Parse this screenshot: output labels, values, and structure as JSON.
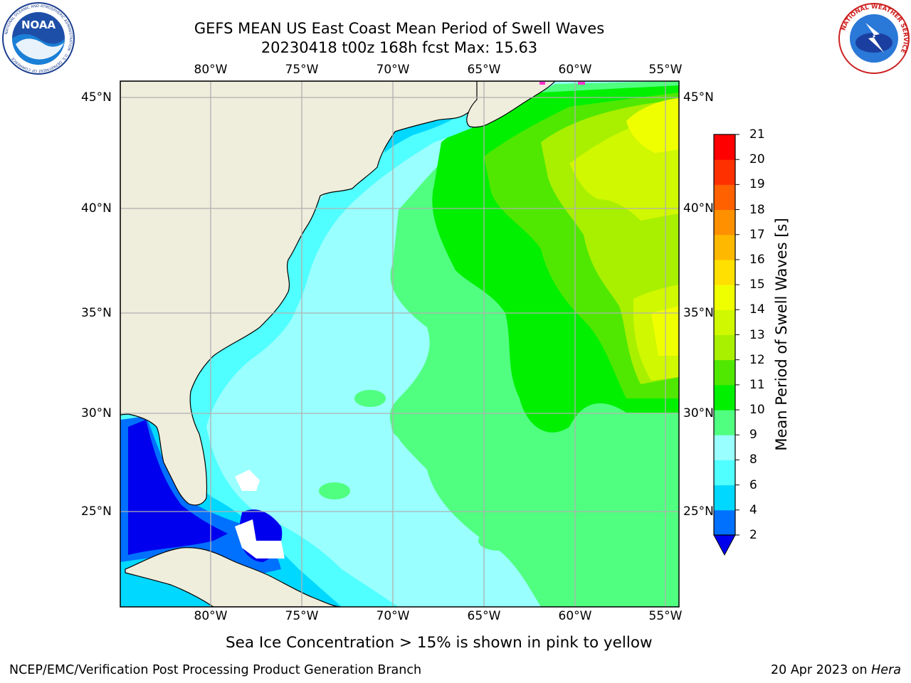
{
  "header": {
    "title_line1": "GEFS MEAN US East Coast Mean Period of Swell Waves",
    "title_line2": "20230418 t00z 168h fcst   Max: 15.63"
  },
  "logos": {
    "left": {
      "icon": "noaa-logo",
      "text": "NOAA",
      "ring_text": "NATIONAL OCEANIC AND ATMOSPHERIC ADMINISTRATION · U.S. DEPARTMENT OF COMMERCE"
    },
    "right": {
      "icon": "nws-logo",
      "ring_text": "NATIONAL WEATHER SERVICE"
    }
  },
  "map": {
    "lon_labels": [
      "80°W",
      "75°W",
      "70°W",
      "65°W",
      "60°W",
      "55°W"
    ],
    "lat_labels": [
      "45°N",
      "40°N",
      "35°N",
      "30°N",
      "25°N"
    ],
    "colors": {
      "land": "#efeddc",
      "ocean_base": "#99ffff",
      "coastline": "#000000",
      "grid": "#b0b0b0"
    }
  },
  "colorbar": {
    "title": "Mean Period of Swell Waves [s]",
    "tick_labels": [
      "2",
      "4",
      "6",
      "8",
      "9",
      "10",
      "11",
      "12",
      "13",
      "14",
      "15",
      "16",
      "17",
      "18",
      "19",
      "20",
      "21"
    ],
    "colors": [
      "#0070ff",
      "#00d8ff",
      "#50ffff",
      "#99ffff",
      "#50ff80",
      "#00f000",
      "#50e800",
      "#a8f000",
      "#d0f800",
      "#f0ff00",
      "#ffe000",
      "#ffb800",
      "#ff9000",
      "#ff6000",
      "#ff3000",
      "#ff0000"
    ],
    "under_color": "#0000ee"
  },
  "note": "Sea Ice Concentration > 15% is shown in pink to yellow",
  "footer": {
    "left": "NCEP/EMC/Verification Post Processing Product Generation Branch",
    "date": "20 Apr 2023 on ",
    "machine": "Hera"
  }
}
